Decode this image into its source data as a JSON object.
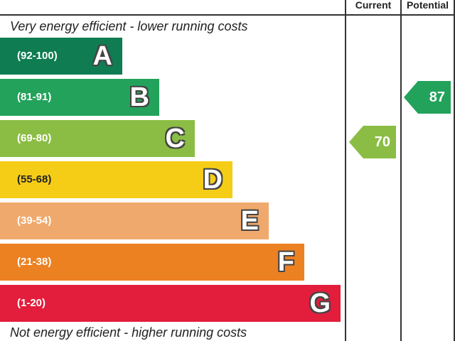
{
  "chart_data": {
    "type": "bar",
    "title": "",
    "header": {
      "current": "Current",
      "potential": "Potential"
    },
    "top_caption": "Very energy efficient - lower running costs",
    "bottom_caption": "Not energy efficient - higher running costs",
    "bands": [
      {
        "letter": "A",
        "range": "(92-100)",
        "color": "#0f7c52"
      },
      {
        "letter": "B",
        "range": "(81-91)",
        "color": "#23a25b"
      },
      {
        "letter": "C",
        "range": "(69-80)",
        "color": "#8bbd44"
      },
      {
        "letter": "D",
        "range": "(55-68)",
        "color": "#f5cd17"
      },
      {
        "letter": "E",
        "range": "(39-54)",
        "color": "#f0a96c"
      },
      {
        "letter": "F",
        "range": "(21-38)",
        "color": "#ec8122"
      },
      {
        "letter": "G",
        "range": "(1-20)",
        "color": "#e31d3c"
      }
    ],
    "series": [
      {
        "name": "Current",
        "value": 70,
        "band": "C",
        "color": "#8bbd44"
      },
      {
        "name": "Potential",
        "value": 87,
        "band": "B",
        "color": "#23a25b"
      }
    ]
  }
}
